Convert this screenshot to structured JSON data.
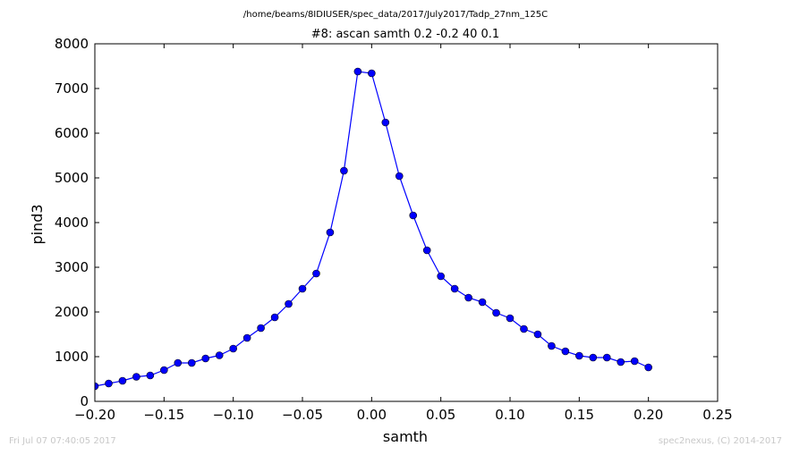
{
  "chart_data": {
    "type": "line",
    "suptitle": "/home/beams/8IDIUSER/spec_data/2017/July2017/Tadp_27nm_125C",
    "title": "#8: ascan  samth 0.2 -0.2  40 0.1",
    "xlabel": "samth",
    "ylabel": "pind3",
    "xlim": [
      -0.2,
      0.25
    ],
    "ylim": [
      0,
      8000
    ],
    "xticks": [
      -0.2,
      -0.15,
      -0.1,
      -0.05,
      0.0,
      0.05,
      0.1,
      0.15,
      0.2,
      0.25
    ],
    "xtick_labels": [
      "−0.20",
      "−0.15",
      "−0.10",
      "−0.05",
      "0.00",
      "0.05",
      "0.10",
      "0.15",
      "0.20",
      "0.25"
    ],
    "yticks": [
      0,
      1000,
      2000,
      3000,
      4000,
      5000,
      6000,
      7000,
      8000
    ],
    "ytick_labels": [
      "0",
      "1000",
      "2000",
      "3000",
      "4000",
      "5000",
      "6000",
      "7000",
      "8000"
    ],
    "grid": false,
    "series": [
      {
        "color": "#0000ff",
        "marker": "circle",
        "x": [
          -0.2,
          -0.19,
          -0.18,
          -0.17,
          -0.16,
          -0.15,
          -0.14,
          -0.13,
          -0.12,
          -0.11,
          -0.1,
          -0.09,
          -0.08,
          -0.07,
          -0.06,
          -0.05,
          -0.04,
          -0.03,
          -0.02,
          -0.01,
          0.0,
          0.01,
          0.02,
          0.03,
          0.04,
          0.05,
          0.06,
          0.07,
          0.08,
          0.09,
          0.1,
          0.11,
          0.12,
          0.13,
          0.14,
          0.15,
          0.16,
          0.17,
          0.18,
          0.19,
          0.2
        ],
        "y": [
          340,
          400,
          460,
          550,
          580,
          700,
          860,
          860,
          960,
          1030,
          1180,
          1420,
          1640,
          1880,
          2180,
          2520,
          2860,
          3780,
          5160,
          7380,
          7340,
          6240,
          5040,
          4160,
          3380,
          2800,
          2520,
          2320,
          2220,
          1980,
          1860,
          1620,
          1500,
          1240,
          1120,
          1020,
          980,
          980,
          880,
          900,
          760
        ]
      }
    ]
  },
  "footer": {
    "left": "Fri Jul 07 07:40:05 2017",
    "right": "spec2nexus, (C) 2014-2017"
  }
}
